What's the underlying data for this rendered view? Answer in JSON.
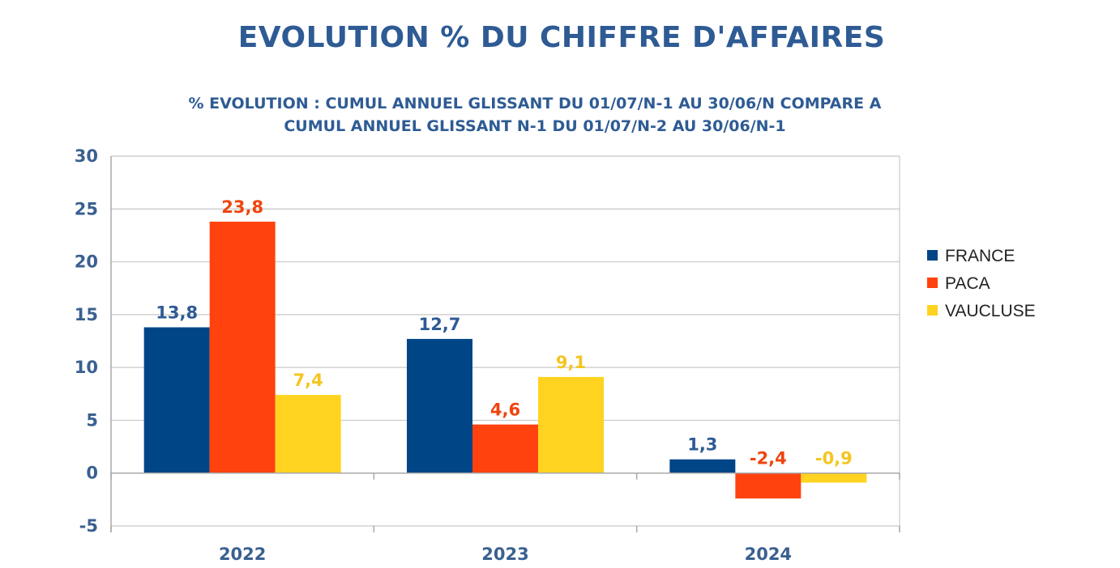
{
  "colors": {
    "title": "#2e5b94",
    "axis_text": "#3a6090",
    "grid": "#c8c8c8",
    "axis_line": "#a8a8a8"
  },
  "chart_data": {
    "type": "bar",
    "title": "EVOLUTION % DU CHIFFRE D'AFFAIRES",
    "subtitle": [
      "% EVOLUTION : CUMUL ANNUEL GLISSANT DU 01/07/N-1 AU 30/06/N COMPARE A",
      "CUMUL ANNUEL GLISSANT N-1 DU 01/07/N-2 AU 30/06/N-1"
    ],
    "xlabel": "",
    "ylabel": "",
    "categories": [
      "2022",
      "2023",
      "2024"
    ],
    "ylim": [
      -5,
      30
    ],
    "yticks": [
      "-5",
      "0",
      "5",
      "10",
      "15",
      "20",
      "25",
      "30"
    ],
    "ytick_values": [
      -5,
      0,
      5,
      10,
      15,
      20,
      25,
      30
    ],
    "grid": true,
    "legend_position": "right",
    "series": [
      {
        "name": "FRANCE",
        "color": "#004586",
        "values": [
          13.8,
          12.7,
          1.3
        ],
        "labels": [
          "13,8",
          "12,7",
          "1,3"
        ],
        "label_color": "#2e5b94"
      },
      {
        "name": "PACA",
        "color": "#ff420e",
        "values": [
          23.8,
          4.6,
          -2.4
        ],
        "labels": [
          "23,8",
          "4,6",
          "-2,4"
        ],
        "label_color": "#f0440e"
      },
      {
        "name": "VAUCLUSE",
        "color": "#ffd320",
        "values": [
          7.4,
          9.1,
          -0.9
        ],
        "labels": [
          "7,4",
          "9,1",
          "-0,9"
        ],
        "label_color": "#f5c520"
      }
    ]
  }
}
